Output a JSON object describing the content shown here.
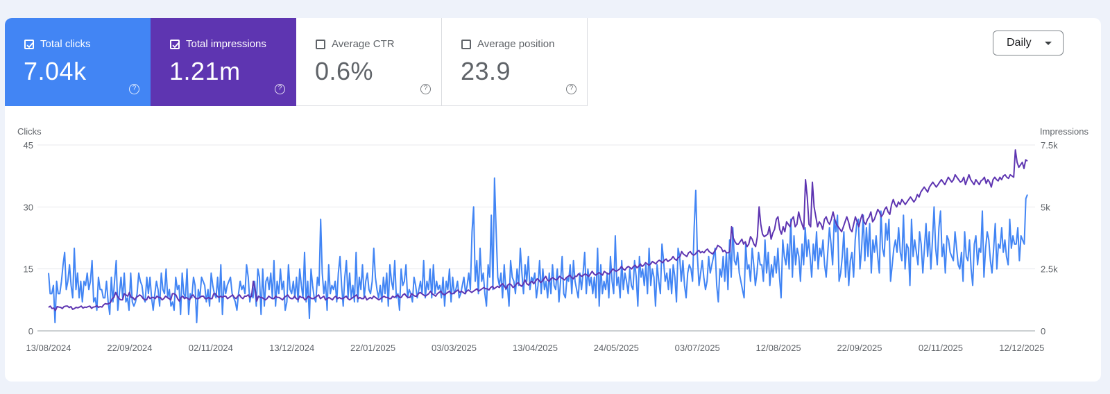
{
  "metrics": [
    {
      "label": "Total clicks",
      "value": "7.04k",
      "checked": true,
      "color": "#4285f4"
    },
    {
      "label": "Total impressions",
      "value": "1.21m",
      "checked": true,
      "color": "#5e35b1"
    },
    {
      "label": "Average CTR",
      "value": "0.6%",
      "checked": false
    },
    {
      "label": "Average position",
      "value": "23.9",
      "checked": false
    }
  ],
  "help_glyph": "?",
  "granularity": {
    "selected": "Daily"
  },
  "chart_data": {
    "type": "line",
    "ylabel_left": "Clicks",
    "ylabel_right": "Impressions",
    "left_ticks": [
      "45",
      "30",
      "15",
      "0"
    ],
    "right_ticks": [
      "7.5k",
      "5k",
      "2.5k",
      "0"
    ],
    "left_range": [
      0,
      45
    ],
    "right_range": [
      0,
      7500
    ],
    "x_ticks": [
      "13/08/2024",
      "22/09/2024",
      "02/11/2024",
      "13/12/2024",
      "22/01/2025",
      "03/03/2025",
      "13/04/2025",
      "24/05/2025",
      "03/07/2025",
      "12/08/2025",
      "22/09/2025",
      "02/11/2025",
      "12/12/2025"
    ],
    "x_range": [
      "13/08/2024",
      "17/12/2025"
    ],
    "grid": true,
    "series": [
      {
        "name": "Total clicks",
        "axis": "left",
        "color": "#4285f4",
        "values": [
          14,
          9,
          9,
          11,
          2,
          12,
          9,
          9,
          12,
          16,
          19,
          10,
          12,
          16,
          11,
          8,
          20,
          10,
          14,
          8,
          12,
          7,
          12,
          11,
          14,
          10,
          12,
          17,
          7,
          8,
          5,
          13,
          10,
          10,
          8,
          8,
          12,
          7,
          4,
          13,
          7,
          12,
          17,
          5,
          9,
          13,
          8,
          14,
          7,
          8,
          5,
          14,
          7,
          6,
          7,
          9,
          14,
          12,
          11,
          8,
          7,
          13,
          9,
          13,
          8,
          5,
          9,
          12,
          10,
          6,
          14,
          10,
          9,
          15,
          8,
          10,
          6,
          7,
          5,
          13,
          10,
          11,
          4,
          14,
          9,
          8,
          15,
          4,
          9,
          8,
          13,
          11,
          2,
          10,
          8,
          13,
          12,
          11,
          7,
          10,
          6,
          14,
          11,
          9,
          8,
          13,
          7,
          16,
          4,
          12,
          9,
          11,
          12,
          13,
          9,
          8,
          7,
          5,
          9,
          12,
          10,
          11,
          9,
          16,
          13,
          7,
          9,
          8,
          12,
          6,
          15,
          13,
          4,
          15,
          6,
          12,
          13,
          10,
          14,
          8,
          17,
          6,
          12,
          9,
          15,
          10,
          12,
          5,
          7,
          16,
          10,
          9,
          12,
          8,
          13,
          7,
          15,
          11,
          8,
          19,
          7,
          12,
          3,
          15,
          11,
          8,
          7,
          13,
          11,
          27,
          14,
          9,
          12,
          5,
          16,
          9,
          11,
          10,
          12,
          7,
          14,
          18,
          11,
          6,
          13,
          17,
          8,
          14,
          8,
          11,
          7,
          19,
          7,
          13,
          10,
          16,
          8,
          12,
          14,
          10,
          9,
          12,
          20,
          13,
          10,
          8,
          11,
          7,
          13,
          9,
          14,
          6,
          16,
          12,
          10,
          17,
          8,
          9,
          5,
          15,
          11,
          12,
          16,
          8,
          10,
          9,
          7,
          13,
          11,
          8,
          10,
          12,
          9,
          17,
          8,
          12,
          10,
          15,
          8,
          16,
          9,
          12,
          10,
          11,
          8,
          13,
          6,
          12,
          10,
          15,
          7,
          13,
          9,
          10,
          12,
          8,
          9,
          11,
          13,
          9,
          11,
          14,
          10,
          24,
          30,
          12,
          17,
          9,
          20,
          12,
          14,
          9,
          6,
          16,
          13,
          28,
          10,
          37,
          24,
          13,
          11,
          14,
          8,
          16,
          10,
          11,
          6,
          17,
          13,
          12,
          9,
          15,
          11,
          20,
          14,
          9,
          16,
          12,
          18,
          10,
          13,
          12,
          14,
          8,
          11,
          17,
          9,
          15,
          10,
          12,
          8,
          14,
          9,
          16,
          11,
          10,
          15,
          7,
          12,
          18,
          9,
          8,
          13,
          12,
          16,
          9,
          17,
          12,
          10,
          8,
          14,
          10,
          14,
          19,
          9,
          15,
          11,
          13,
          9,
          13,
          8,
          20,
          6,
          16,
          9,
          12,
          10,
          14,
          8,
          18,
          12,
          9,
          23,
          11,
          13,
          8,
          17,
          10,
          14,
          12,
          9,
          15,
          11,
          10,
          17,
          13,
          6,
          18,
          13,
          15,
          11,
          16,
          9,
          20,
          11,
          15,
          13,
          6,
          16,
          12,
          9,
          21,
          17,
          12,
          14,
          10,
          15,
          9,
          16,
          13,
          7,
          20,
          18,
          12,
          17,
          11,
          8,
          14,
          16,
          15,
          12,
          25,
          34,
          18,
          11,
          14,
          17,
          13,
          10,
          12,
          18,
          14,
          16,
          18,
          20,
          11,
          7,
          15,
          13,
          18,
          12,
          19,
          10,
          22,
          13,
          25,
          17,
          16,
          19,
          14,
          12,
          10,
          8,
          21,
          15,
          16,
          12,
          20,
          16,
          11,
          14,
          19,
          16,
          16,
          12,
          22,
          14,
          19,
          11,
          16,
          13,
          18,
          14,
          20,
          13,
          8,
          22,
          18,
          16,
          21,
          15,
          27,
          13,
          23,
          16,
          20,
          18,
          12,
          21,
          16,
          25,
          18,
          22,
          18,
          13,
          21,
          17,
          24,
          15,
          20,
          18,
          22,
          16,
          13,
          19,
          25,
          21,
          16,
          27,
          24,
          28,
          12,
          14,
          18,
          24,
          13,
          20,
          11,
          17,
          19,
          13,
          22,
          26,
          27,
          15,
          20,
          28,
          17,
          25,
          18,
          26,
          14,
          22,
          19,
          23,
          18,
          14,
          29,
          20,
          18,
          26,
          22,
          27,
          12,
          16,
          20,
          22,
          19,
          25,
          19,
          17,
          28,
          15,
          21,
          20,
          11,
          27,
          18,
          22,
          19,
          16,
          24,
          21,
          14,
          20,
          26,
          18,
          24,
          15,
          22,
          30,
          20,
          16,
          25,
          29,
          18,
          21,
          14,
          23,
          22,
          19,
          18,
          17,
          24,
          20,
          16,
          15,
          19,
          12,
          24,
          18,
          17,
          22,
          15,
          11,
          21,
          23,
          16,
          20,
          19,
          29,
          13,
          20,
          24,
          22,
          17,
          14,
          20,
          26,
          15,
          21,
          20,
          25,
          19,
          22,
          18,
          16,
          27,
          20,
          23,
          21,
          21,
          25,
          17,
          23,
          22,
          21,
          32,
          33
        ]
      },
      {
        "name": "Total impressions",
        "axis": "right",
        "color": "#5e35b1",
        "values": [
          950,
          1000,
          900,
          920,
          820,
          980,
          960,
          950,
          900,
          980,
          1000,
          1000,
          940,
          980,
          870,
          900,
          950,
          930,
          960,
          1000,
          920,
          960,
          950,
          980,
          1000,
          910,
          960,
          970,
          1020,
          950,
          980,
          960,
          1050,
          1100,
          1080,
          1100,
          1150,
          1300,
          1350,
          1550,
          1400,
          1300,
          1250,
          1250,
          1500,
          1450,
          1400,
          1550,
          1350,
          1350,
          1250,
          1350,
          1400,
          1450,
          1400,
          1300,
          1250,
          1250,
          1400,
          1300,
          1350,
          1350,
          1300,
          1400,
          1350,
          1350,
          1250,
          1300,
          1400,
          1350,
          1300,
          1250,
          1500,
          1500,
          1450,
          1300,
          1200,
          1350,
          1400,
          1300,
          1350,
          1300,
          1250,
          1400,
          1450,
          1350,
          1300,
          1300,
          1350,
          1400,
          1400,
          1300,
          1300,
          1350,
          1300,
          1300,
          1500,
          1500,
          1400,
          1350,
          1400,
          1350,
          1400,
          1400,
          1300,
          1350,
          1400,
          1450,
          1350,
          1300,
          1400,
          1450,
          1350,
          1300,
          1400,
          1400,
          1450,
          1350,
          1400,
          2000,
          1700,
          1200,
          1400,
          1350,
          1350,
          1300,
          1250,
          1300,
          1400,
          1350,
          1300,
          1300,
          1400,
          1350,
          1350,
          1300,
          1250,
          1350,
          1400,
          1450,
          1350,
          1300,
          1300,
          1400,
          1300,
          1250,
          1400,
          1350,
          1350,
          1250,
          1300,
          1400,
          1350,
          1300,
          1300,
          1350,
          1400,
          1450,
          1300,
          1350,
          1400,
          1250,
          1300,
          1350,
          1300,
          1250,
          1350,
          1400,
          1300,
          1350,
          1300,
          1300,
          1350,
          1400,
          1300,
          1250,
          1300,
          1350,
          1400,
          1450,
          1300,
          1350,
          1300,
          1300,
          1400,
          1250,
          1300,
          1350,
          1300,
          1400,
          1350,
          1300,
          1250,
          1300,
          1350,
          1400,
          1350,
          1350,
          1300,
          1300,
          1400,
          1350,
          1400,
          1450,
          1350,
          1350,
          1450,
          1500,
          1400,
          1350,
          1350,
          1500,
          1450,
          1400,
          1400,
          1500,
          1550,
          1500,
          1450,
          1400,
          1450,
          1500,
          1600,
          1500,
          1450,
          1400,
          1500,
          1550,
          1600,
          1500,
          1450,
          1500,
          1550,
          1600,
          1500,
          1500,
          1550,
          1600,
          1650,
          1550,
          1600,
          1550,
          1500,
          1600,
          1650,
          1600,
          1550,
          1600,
          1650,
          1700,
          1600,
          1650,
          1700,
          1750,
          1700,
          1700,
          1650,
          1750,
          1800,
          1700,
          1750,
          1800,
          1750,
          1850,
          1900,
          1800,
          1700,
          1850,
          1900,
          1850,
          1750,
          1800,
          1900,
          1950,
          1850,
          1800,
          1900,
          2050,
          1900,
          1850,
          1950,
          2000,
          1900,
          2000,
          2100,
          2050,
          1950,
          2000,
          2100,
          2200,
          2050,
          2000,
          2100,
          2150,
          2100,
          2050,
          2100,
          2200,
          2150,
          2100,
          2050,
          2150,
          2200,
          2250,
          2150,
          2100,
          2200,
          2200,
          2300,
          2250,
          2200,
          2250,
          2300,
          2250,
          2200,
          2300,
          2400,
          2300,
          2250,
          2300,
          2350,
          2300,
          2250,
          2400,
          2350,
          2300,
          2300,
          2400,
          2500,
          2450,
          2400,
          2450,
          2500,
          2600,
          2500,
          2450,
          2550,
          2600,
          2550,
          2500,
          2600,
          2650,
          2550,
          2600,
          2700,
          2600,
          2650,
          2750,
          2700,
          2650,
          2700,
          2800,
          2750,
          2700,
          2800,
          2850,
          2800,
          2750,
          2850,
          2900,
          2800,
          2850,
          2900,
          3000,
          2900,
          2850,
          2950,
          3000,
          3200,
          3100,
          3050,
          3000,
          3150,
          3200,
          3100,
          3050,
          3100,
          3200,
          3250,
          3150,
          3200,
          3150,
          3250,
          3300,
          3200,
          3150,
          3100,
          3200,
          3300,
          3450,
          3400,
          3350,
          3200,
          3250,
          3150,
          3150,
          3200,
          4200,
          3750,
          3600,
          3500,
          3500,
          3600,
          3700,
          3500,
          3600,
          3400,
          3500,
          3800,
          3700,
          3500,
          3400,
          3800,
          5000,
          4300,
          3900,
          3800,
          3850,
          3900,
          4200,
          3700,
          3950,
          4100,
          4500,
          4600,
          4100,
          3900,
          4200,
          4000,
          4400,
          4300,
          4200,
          4500,
          4600,
          4200,
          4300,
          4800,
          4500,
          4300,
          4100,
          6100,
          5400,
          4300,
          4200,
          6000,
          5000,
          4600,
          4200,
          4400,
          4300,
          4100,
          4500,
          4600,
          4400,
          4300,
          4500,
          4800,
          4500,
          4300,
          4200,
          4100,
          4000,
          4200,
          4400,
          4600,
          4400,
          4100,
          4000,
          4300,
          4600,
          4400,
          4200,
          4500,
          4700,
          4400,
          4300,
          4500,
          4600,
          4800,
          4400,
          4500,
          4700,
          4900,
          4800,
          4600,
          4700,
          4900,
          5000,
          4800,
          4700,
          5100,
          5300,
          5100,
          5000,
          5200,
          5100,
          5300,
          5200,
          5100,
          5200,
          5300,
          5400,
          5300,
          5200,
          5300,
          5500,
          5400,
          5600,
          5700,
          5800,
          5700,
          5600,
          5800,
          5900,
          6000,
          5900,
          5800,
          5900,
          6000,
          6100,
          6000,
          5900,
          6050,
          6200,
          6100,
          6000,
          6100,
          6300,
          6200,
          6100,
          6000,
          6050,
          6200,
          5900,
          6100,
          6300,
          6100,
          6000,
          5900,
          6100,
          6000,
          5900,
          6050,
          6100,
          6200,
          5950,
          6100,
          6000,
          5800,
          6100,
          6200,
          6100,
          6050,
          6200,
          6100,
          6250,
          6300,
          6200,
          6150,
          6300,
          6250,
          6200,
          7300,
          6800,
          6600,
          6700,
          6800,
          6550,
          6900,
          6850
        ]
      }
    ]
  }
}
